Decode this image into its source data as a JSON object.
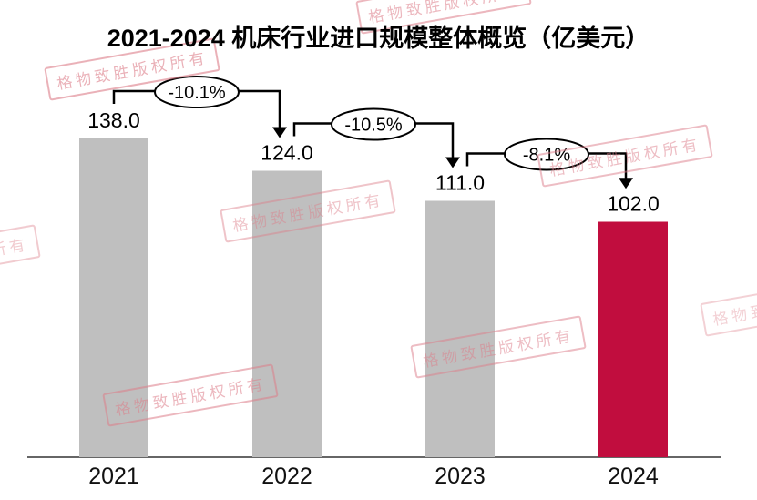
{
  "chart_data": {
    "type": "bar",
    "title": "2021-2024 机床行业进口规模整体概览（亿美元）",
    "categories": [
      "2021",
      "2022",
      "2023",
      "2024"
    ],
    "values": [
      138.0,
      124.0,
      111.0,
      102.0
    ],
    "value_labels": [
      "138.0",
      "124.0",
      "111.0",
      "102.0"
    ],
    "change_labels": [
      "-10.1%",
      "-10.5%",
      "-8.1%"
    ],
    "series_name": "机床行业进口规模",
    "unit": "亿美元",
    "ylim": [
      0,
      138
    ],
    "xlabel": "",
    "ylabel": "",
    "gridlines": false,
    "y_axis_visible": false,
    "legend": "none",
    "colors": {
      "bar_base": "#BFBFBF",
      "bar_highlight": "#C10D3E",
      "bar_fills": [
        "#BFBFBF",
        "#BFBFBF",
        "#BFBFBF",
        "#C10D3E"
      ],
      "axis_line": "#333333",
      "arrow": "#000000",
      "watermark": "#DD7E8A"
    }
  },
  "watermark": {
    "text": "格物致胜版权所有"
  }
}
